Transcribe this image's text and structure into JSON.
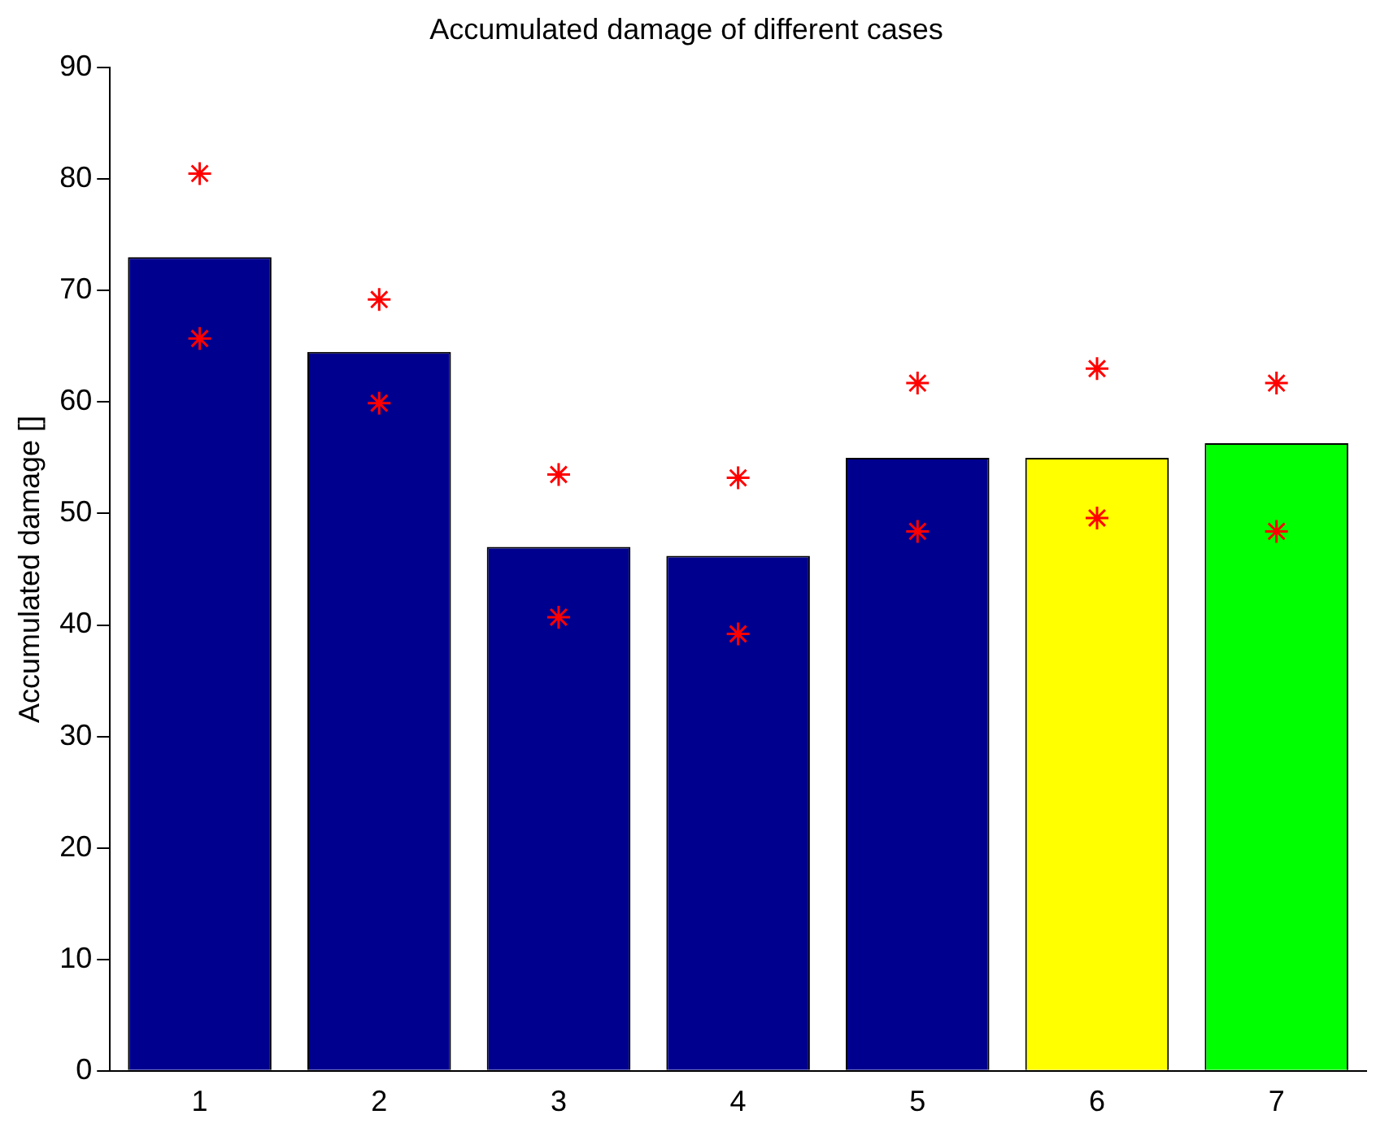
{
  "chart_data": {
    "type": "bar",
    "title": "Accumulated damage of different cases",
    "ylabel": "Accumulated damage []",
    "categories": [
      "1",
      "2",
      "3",
      "4",
      "5",
      "6",
      "7"
    ],
    "ylim": [
      0,
      90
    ],
    "yticks": [
      0,
      10,
      20,
      30,
      40,
      50,
      60,
      70,
      80,
      90
    ],
    "grid": false,
    "legend": false,
    "series": [
      {
        "colors": [
          "#00008f",
          "#00008f",
          "#00008f",
          "#00008f",
          "#00008f",
          "#ffff00",
          "#00ff00"
        ],
        "values": [
          73,
          64.5,
          47,
          46.2,
          55,
          55,
          56.3
        ]
      },
      {
        "type": "scatter",
        "color": "#ff0000",
        "marker": "cross",
        "x": [
          "1",
          "2",
          "3",
          "4",
          "5",
          "6",
          "7"
        ],
        "values": [
          80.5,
          69.2,
          53.5,
          53.2,
          61.7,
          63,
          61.7
        ]
      },
      {
        "type": "scatter",
        "color": "#ff0000",
        "marker": "cross",
        "x": [
          "1",
          "2",
          "3",
          "4",
          "5",
          "6",
          "7"
        ],
        "values": [
          65.7,
          59.9,
          40.7,
          39.2,
          48.4,
          49.6,
          48.4
        ]
      }
    ]
  }
}
